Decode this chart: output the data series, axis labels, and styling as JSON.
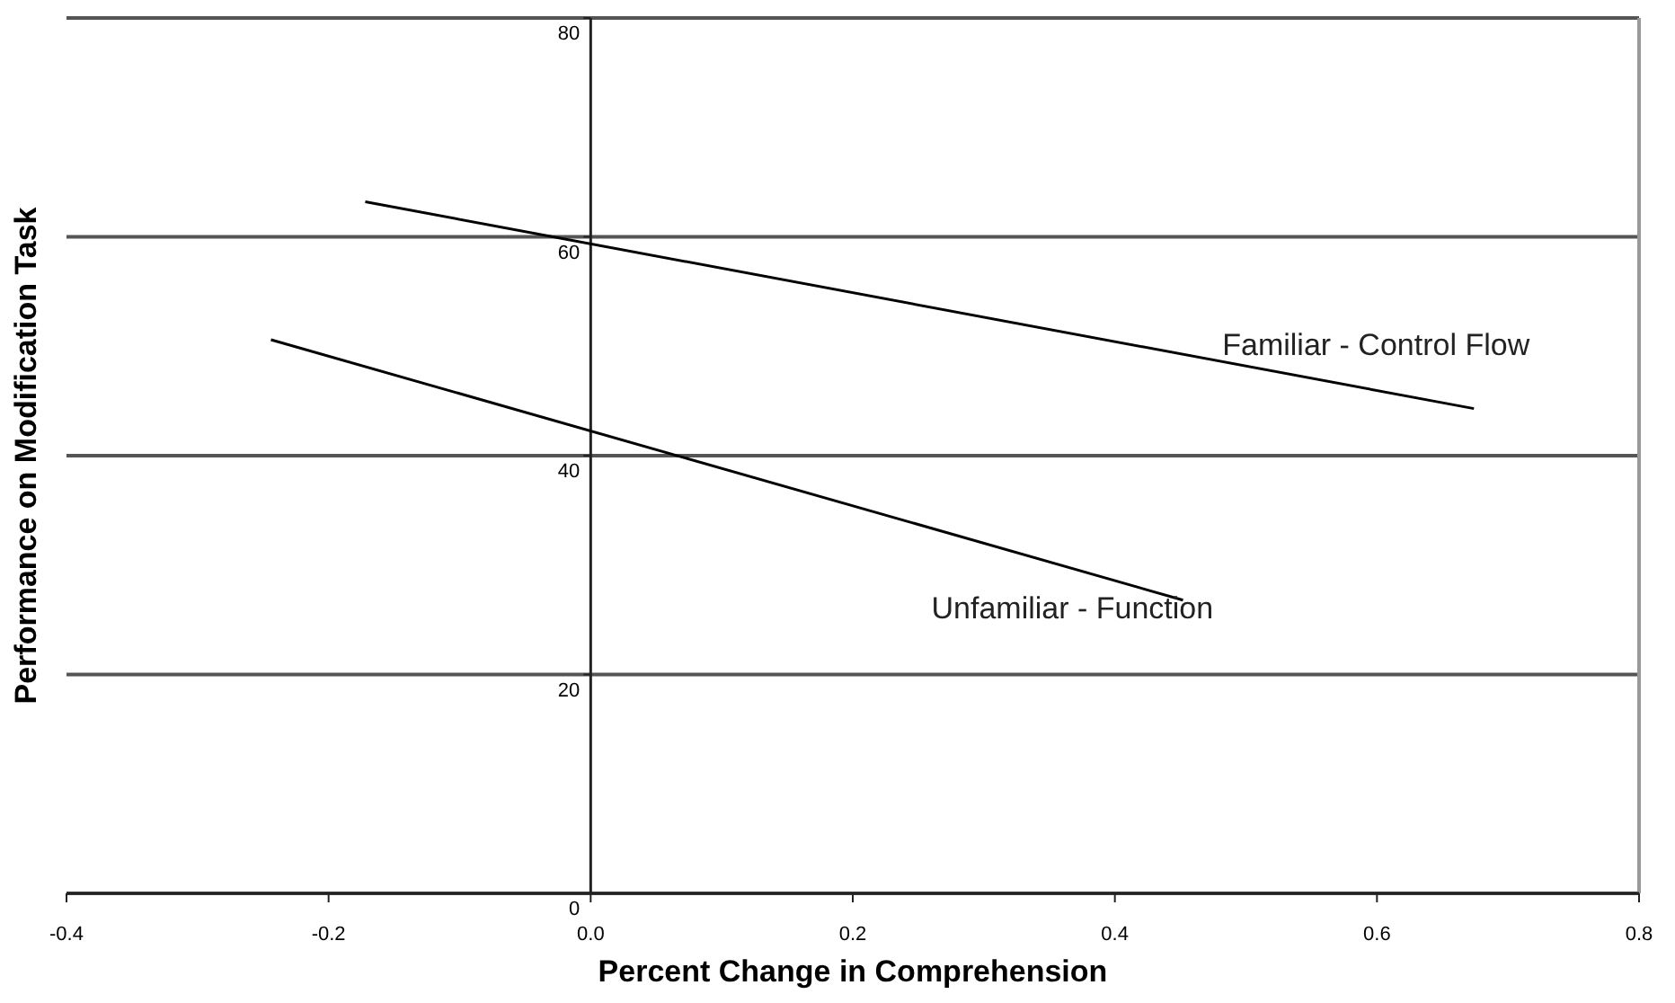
{
  "chart_data": {
    "type": "line",
    "xlabel": "Percent Change in Comprehension",
    "ylabel": "Performance on Modification Task",
    "series": [
      {
        "name": "Familiar - Control Flow",
        "color": "#000000",
        "x": [
          -0.172,
          0.674
        ],
        "values": [
          63.2,
          44.3
        ]
      },
      {
        "name": "Unfamiliar - Function",
        "color": "#000000",
        "x": [
          -0.244,
          0.452
        ],
        "values": [
          50.6,
          26.8
        ]
      }
    ],
    "xlim": [
      -0.4,
      0.8
    ],
    "xticks": [
      {
        "value": -0.4,
        "label": "-0.4"
      },
      {
        "value": -0.2,
        "label": "-0.2"
      },
      {
        "value": 0,
        "label": "0.0"
      },
      {
        "value": 0.2,
        "label": "0.2"
      },
      {
        "value": 0.4,
        "label": "0.4"
      },
      {
        "value": 0.6,
        "label": "0.6"
      },
      {
        "value": 0.8,
        "label": "0.8"
      }
    ],
    "ylim": [
      0,
      80
    ],
    "yticks": [
      0,
      20,
      40,
      60,
      80
    ],
    "grid": "y",
    "marker": "none",
    "line_style": "solid"
  }
}
